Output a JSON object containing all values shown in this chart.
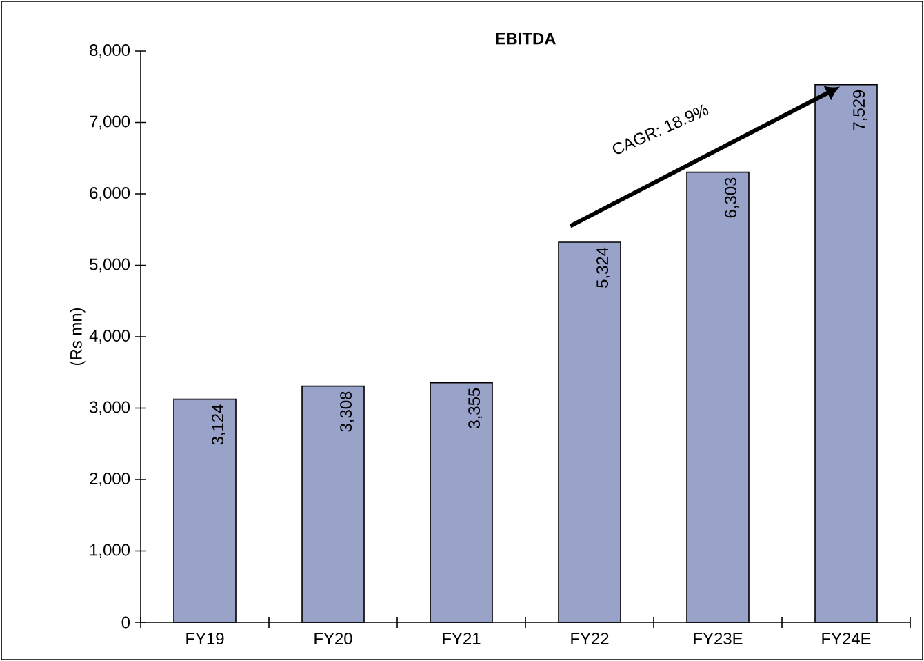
{
  "chart_data": {
    "type": "bar",
    "title": "EBITDA",
    "ylabel": "(Rs mn)",
    "categories": [
      "FY19",
      "FY20",
      "FY21",
      "FY22",
      "FY23E",
      "FY24E"
    ],
    "values": [
      3124,
      3308,
      3355,
      5324,
      6303,
      7529
    ],
    "value_labels": [
      "3,124",
      "3,308",
      "3,355",
      "5,324",
      "6,303",
      "7,529"
    ],
    "color": "#99a3c9",
    "ylim": [
      0,
      8000
    ],
    "yticks": [
      {
        "value": 0,
        "label": "0"
      },
      {
        "value": 1000,
        "label": "1,000"
      },
      {
        "value": 2000,
        "label": "2,000"
      },
      {
        "value": 3000,
        "label": "3,000"
      },
      {
        "value": 4000,
        "label": "4,000"
      },
      {
        "value": 5000,
        "label": "5,000"
      },
      {
        "value": 6000,
        "label": "6,000"
      },
      {
        "value": 7000,
        "label": "7,000"
      },
      {
        "value": 8000,
        "label": "8,000"
      }
    ],
    "annotations": [
      "CAGR: 18.9%"
    ],
    "grid": false
  }
}
